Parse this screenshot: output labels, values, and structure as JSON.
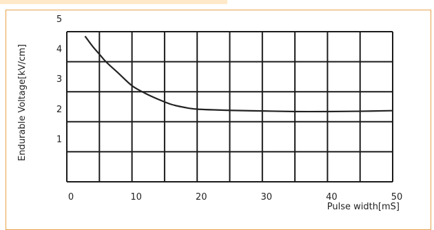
{
  "chart_data": {
    "type": "line",
    "title": "",
    "xlabel": "Pulse width[mS]",
    "ylabel": "Endurable Voltage[kV/cm]",
    "xlim": [
      0,
      50
    ],
    "ylim": [
      0,
      5
    ],
    "x_ticks": [
      "0",
      "10",
      "20",
      "30",
      "40",
      "50"
    ],
    "y_ticks": [
      "1",
      "2",
      "3",
      "4",
      "5"
    ],
    "grid": true,
    "legend": "none",
    "series": [
      {
        "color": "#222222",
        "x": [
          2.8,
          4,
          5,
          6,
          8,
          10,
          12,
          14,
          16,
          18,
          20,
          25,
          30,
          35,
          40,
          45,
          50
        ],
        "y": [
          4.85,
          4.5,
          4.25,
          4.0,
          3.6,
          3.2,
          2.95,
          2.75,
          2.58,
          2.48,
          2.42,
          2.38,
          2.36,
          2.34,
          2.34,
          2.35,
          2.37
        ]
      }
    ]
  }
}
